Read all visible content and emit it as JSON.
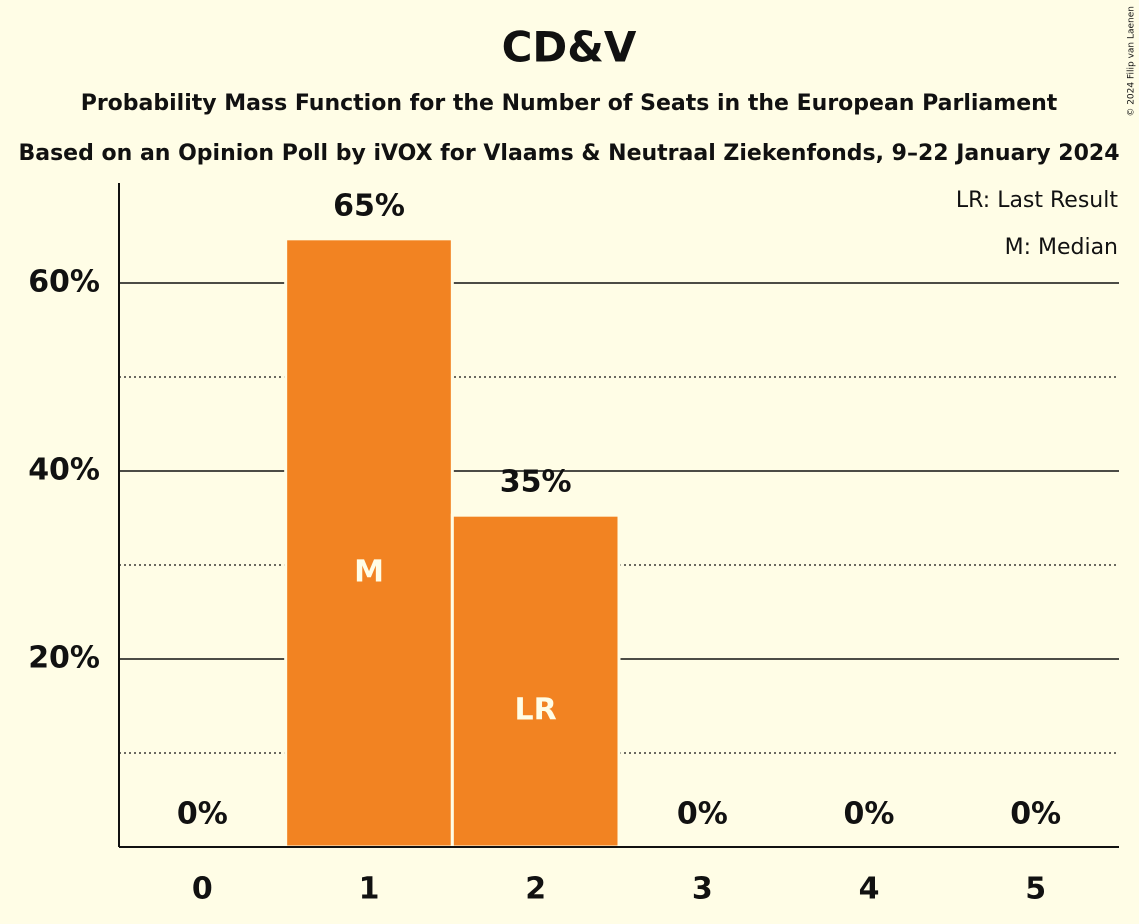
{
  "chart_data": {
    "type": "bar",
    "title": "CD&V",
    "subtitle": "Probability Mass Function for the Number of Seats in the European Parliament",
    "subtitle2": "Based on an Opinion Poll by iVOX for Vlaams & Neutraal Ziekenfonds, 9–22 January 2024",
    "categories": [
      "0",
      "1",
      "2",
      "3",
      "4",
      "5"
    ],
    "values": [
      0,
      64.7,
      35.3,
      0,
      0,
      0
    ],
    "value_labels": [
      "0%",
      "65%",
      "35%",
      "0%",
      "0%",
      "0%"
    ],
    "bar_marks": [
      null,
      "M",
      "LR",
      null,
      null,
      null
    ],
    "color": "#f28322",
    "ylim": [
      0,
      70
    ],
    "yticks": [
      {
        "value": 20,
        "label": "20%"
      },
      {
        "value": 40,
        "label": "40%"
      },
      {
        "value": 60,
        "label": "60%"
      }
    ],
    "minor_yticks": [
      10,
      30,
      50
    ],
    "grid": true,
    "legend": [
      "LR: Last Result",
      "M: Median"
    ],
    "copyright": "© 2024 Filip van Laenen"
  }
}
